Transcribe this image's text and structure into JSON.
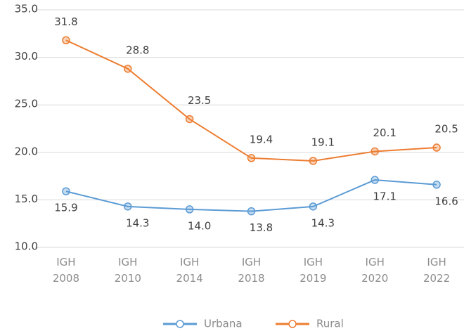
{
  "chart_data": {
    "type": "line",
    "categories": [
      "IGH 2008",
      "IGH 2010",
      "IGH 2014",
      "IGH 2018",
      "IGH 2019",
      "IGH 2020",
      "IGH 2022"
    ],
    "series": [
      {
        "name": "Urbana",
        "color": "#5b9bd5",
        "values": [
          15.9,
          14.3,
          14.0,
          13.8,
          14.3,
          17.1,
          16.6
        ],
        "value_labels": [
          "15.9",
          "14.3",
          "14.0",
          "13.8",
          "14.3",
          "17.1",
          "16.6"
        ]
      },
      {
        "name": "Rural",
        "color": "#ed7d31",
        "values": [
          31.8,
          28.8,
          23.5,
          19.4,
          19.1,
          20.1,
          20.5
        ],
        "value_labels": [
          "31.8",
          "28.8",
          "23.5",
          "19.4",
          "19.1",
          "20.1",
          "20.5"
        ]
      }
    ],
    "ylim": [
      10,
      35
    ],
    "yticks": [
      {
        "value": 10,
        "label": "10.0"
      },
      {
        "value": 15,
        "label": "15.0"
      },
      {
        "value": 20,
        "label": "20.0"
      },
      {
        "value": 25,
        "label": "25.0"
      },
      {
        "value": 30,
        "label": "30.0"
      },
      {
        "value": 35,
        "label": "35.0"
      }
    ],
    "grid": true,
    "legend": "bottom"
  }
}
